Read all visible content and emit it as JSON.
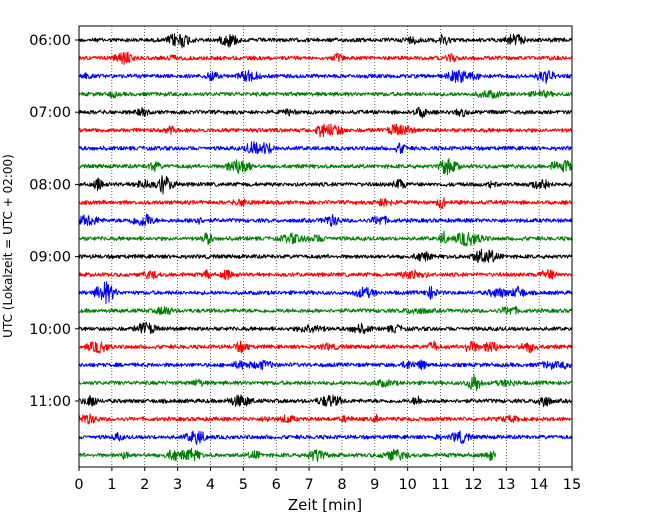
{
  "chart_data": {
    "type": "line",
    "title": "",
    "xlabel": "Zeit  [min]",
    "ylabel": "UTC (Lokalzeit = UTC + 02:00)",
    "xlim": [
      0,
      15
    ],
    "x_ticks": [
      "0",
      "1",
      "2",
      "3",
      "4",
      "5",
      "6",
      "7",
      "8",
      "9",
      "10",
      "11",
      "12",
      "13",
      "14",
      "15"
    ],
    "y_ticks": [
      "06:00",
      "07:00",
      "08:00",
      "09:00",
      "10:00",
      "11:00"
    ],
    "grid": "vertical dotted lines at each minute",
    "legend": "none",
    "trace_colors": [
      "#000000",
      "#ff0000",
      "#0000ff",
      "#008000"
    ],
    "row_interval_minutes": 15,
    "rows": [
      {
        "start": "06:00",
        "color": "#000000",
        "end_min": 15
      },
      {
        "start": "06:15",
        "color": "#ff0000",
        "end_min": 15
      },
      {
        "start": "06:30",
        "color": "#0000ff",
        "end_min": 15
      },
      {
        "start": "06:45",
        "color": "#008000",
        "end_min": 15
      },
      {
        "start": "07:00",
        "color": "#000000",
        "end_min": 15
      },
      {
        "start": "07:15",
        "color": "#ff0000",
        "end_min": 15
      },
      {
        "start": "07:30",
        "color": "#0000ff",
        "end_min": 15
      },
      {
        "start": "07:45",
        "color": "#008000",
        "end_min": 15
      },
      {
        "start": "08:00",
        "color": "#000000",
        "end_min": 15
      },
      {
        "start": "08:15",
        "color": "#ff0000",
        "end_min": 15
      },
      {
        "start": "08:30",
        "color": "#0000ff",
        "end_min": 15
      },
      {
        "start": "08:45",
        "color": "#008000",
        "end_min": 15
      },
      {
        "start": "09:00",
        "color": "#000000",
        "end_min": 15
      },
      {
        "start": "09:15",
        "color": "#ff0000",
        "end_min": 15
      },
      {
        "start": "09:30",
        "color": "#0000ff",
        "end_min": 15
      },
      {
        "start": "09:45",
        "color": "#008000",
        "end_min": 15
      },
      {
        "start": "10:00",
        "color": "#000000",
        "end_min": 15
      },
      {
        "start": "10:15",
        "color": "#ff0000",
        "end_min": 15
      },
      {
        "start": "10:30",
        "color": "#0000ff",
        "end_min": 15
      },
      {
        "start": "10:45",
        "color": "#008000",
        "end_min": 15
      },
      {
        "start": "11:00",
        "color": "#000000",
        "end_min": 15
      },
      {
        "start": "11:15",
        "color": "#ff0000",
        "end_min": 15
      },
      {
        "start": "11:30",
        "color": "#0000ff",
        "end_min": 15
      },
      {
        "start": "11:45",
        "color": "#008000",
        "end_min": 12.7
      }
    ]
  }
}
